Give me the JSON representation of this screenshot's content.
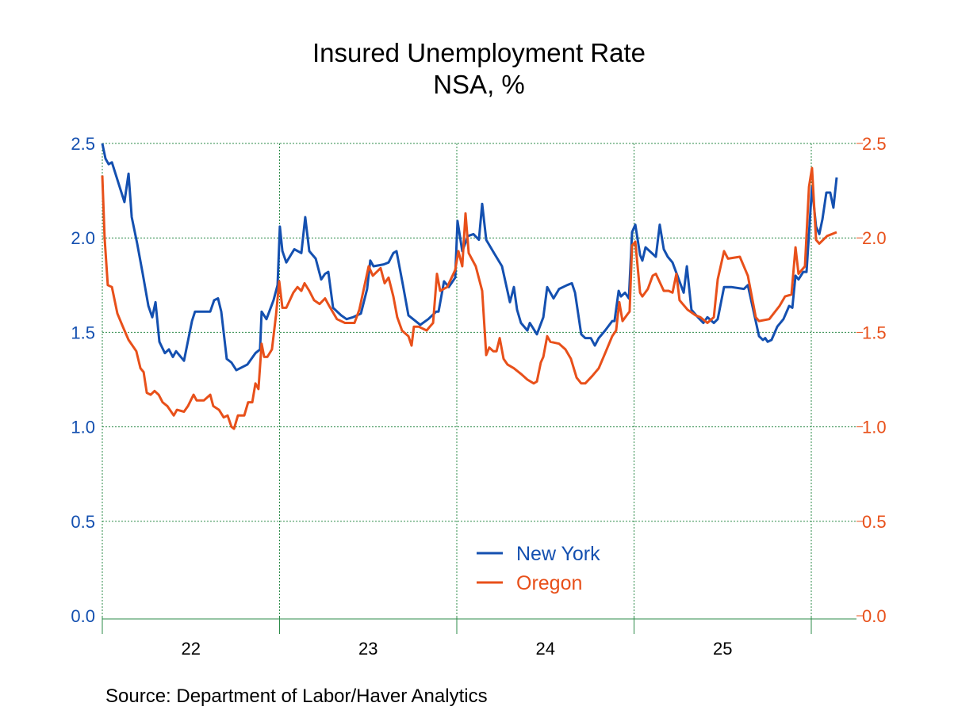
{
  "chart_data": {
    "type": "line",
    "title": "Insured Unemployment Rate",
    "subtitle": "NSA, %",
    "source": "Source:  Department of Labor/Haver Analytics",
    "x_origin_year": 2022,
    "x_note": "x values are years elapsed since start of 2022 (weekly data)",
    "xlim": [
      0,
      4.25
    ],
    "x_ticks": [
      {
        "label": "22",
        "center": 0.5
      },
      {
        "label": "23",
        "center": 1.5
      },
      {
        "label": "24",
        "center": 2.5
      },
      {
        "label": "25",
        "center": 3.5
      }
    ],
    "ylim_left": [
      0,
      2.5
    ],
    "ylim_right": [
      0,
      2.5
    ],
    "y_ticks_left": [
      "0.0",
      "0.5",
      "1.0",
      "1.5",
      "2.0",
      "2.5"
    ],
    "y_ticks_right": [
      "0.0",
      "0.5",
      "1.0",
      "1.5",
      "2.0",
      "2.5"
    ],
    "grid": true,
    "legend_position": "bottom-center",
    "series": [
      {
        "name": "New York",
        "color": "#1450b0",
        "axis": "left",
        "x": [
          0,
          0.018,
          0.036,
          0.054,
          0.125,
          0.148,
          0.166,
          0.197,
          0.228,
          0.26,
          0.282,
          0.3,
          0.322,
          0.353,
          0.376,
          0.398,
          0.416,
          0.461,
          0.506,
          0.523,
          0.609,
          0.631,
          0.653,
          0.671,
          0.702,
          0.729,
          0.756,
          0.819,
          0.864,
          0.89,
          0.899,
          0.926,
          0.966,
          0.989,
          1.002,
          1.016,
          1.038,
          1.083,
          1.123,
          1.145,
          1.168,
          1.204,
          1.235,
          1.257,
          1.275,
          1.302,
          1.347,
          1.378,
          1.414,
          1.459,
          1.494,
          1.512,
          1.53,
          1.588,
          1.615,
          1.642,
          1.66,
          1.696,
          1.727,
          1.767,
          1.794,
          1.839,
          1.884,
          1.897,
          1.928,
          1.955,
          1.991,
          2.004,
          2.031,
          2.063,
          2.094,
          2.125,
          2.143,
          2.166,
          2.21,
          2.255,
          2.3,
          2.322,
          2.34,
          2.362,
          2.398,
          2.412,
          2.452,
          2.488,
          2.51,
          2.546,
          2.577,
          2.622,
          2.649,
          2.667,
          2.702,
          2.725,
          2.756,
          2.779,
          2.801,
          2.837,
          2.877,
          2.89,
          2.913,
          2.926,
          2.949,
          2.971,
          2.989,
          3.007,
          3.034,
          3.047,
          3.065,
          3.123,
          3.145,
          3.168,
          3.19,
          3.217,
          3.28,
          3.298,
          3.324,
          3.36,
          3.391,
          3.414,
          3.45,
          3.472,
          3.508,
          3.548,
          3.62,
          3.642,
          3.705,
          3.727,
          3.74,
          3.754,
          3.776,
          3.808,
          3.843,
          3.875,
          3.893,
          3.911,
          3.928,
          3.955,
          3.973,
          4.004,
          4.027,
          4.045,
          4.063,
          4.085,
          4.107,
          4.125,
          4.143
        ],
        "values": [
          2.5,
          2.42,
          2.39,
          2.4,
          2.19,
          2.34,
          2.11,
          1.97,
          1.81,
          1.64,
          1.58,
          1.66,
          1.45,
          1.39,
          1.41,
          1.37,
          1.4,
          1.35,
          1.56,
          1.61,
          1.61,
          1.67,
          1.68,
          1.61,
          1.36,
          1.34,
          1.3,
          1.33,
          1.39,
          1.41,
          1.61,
          1.57,
          1.67,
          1.75,
          2.06,
          1.93,
          1.87,
          1.94,
          1.92,
          2.11,
          1.93,
          1.89,
          1.78,
          1.81,
          1.82,
          1.63,
          1.59,
          1.57,
          1.58,
          1.6,
          1.73,
          1.88,
          1.85,
          1.86,
          1.87,
          1.92,
          1.93,
          1.75,
          1.59,
          1.56,
          1.54,
          1.57,
          1.61,
          1.61,
          1.77,
          1.74,
          1.79,
          2.09,
          1.93,
          2.01,
          2.02,
          1.99,
          2.18,
          1.99,
          1.92,
          1.85,
          1.66,
          1.74,
          1.62,
          1.55,
          1.51,
          1.55,
          1.49,
          1.58,
          1.74,
          1.68,
          1.73,
          1.75,
          1.76,
          1.71,
          1.49,
          1.47,
          1.47,
          1.43,
          1.47,
          1.51,
          1.56,
          1.56,
          1.72,
          1.69,
          1.71,
          1.68,
          2.03,
          2.07,
          1.91,
          1.88,
          1.95,
          1.9,
          2.07,
          1.94,
          1.9,
          1.87,
          1.71,
          1.85,
          1.62,
          1.58,
          1.55,
          1.58,
          1.55,
          1.57,
          1.74,
          1.74,
          1.73,
          1.75,
          1.48,
          1.46,
          1.47,
          1.45,
          1.46,
          1.53,
          1.57,
          1.64,
          1.63,
          1.8,
          1.78,
          1.82,
          1.82,
          2.27,
          2.06,
          2.02,
          2.1,
          2.24,
          2.24,
          2.16,
          2.32
        ]
      },
      {
        "name": "Oregon",
        "color": "#e8501a",
        "axis": "right",
        "x": [
          0,
          0.013,
          0.031,
          0.054,
          0.085,
          0.116,
          0.148,
          0.192,
          0.215,
          0.233,
          0.251,
          0.273,
          0.295,
          0.318,
          0.34,
          0.367,
          0.403,
          0.421,
          0.461,
          0.483,
          0.515,
          0.532,
          0.573,
          0.609,
          0.626,
          0.658,
          0.685,
          0.707,
          0.729,
          0.743,
          0.765,
          0.801,
          0.823,
          0.846,
          0.864,
          0.881,
          0.899,
          0.913,
          0.931,
          0.957,
          0.98,
          0.998,
          1.016,
          1.038,
          1.078,
          1.101,
          1.123,
          1.141,
          1.168,
          1.195,
          1.226,
          1.257,
          1.28,
          1.324,
          1.369,
          1.423,
          1.45,
          1.503,
          1.526,
          1.57,
          1.593,
          1.615,
          1.642,
          1.664,
          1.691,
          1.727,
          1.745,
          1.758,
          1.785,
          1.83,
          1.848,
          1.866,
          1.888,
          1.906,
          1.946,
          1.991,
          2.009,
          2.031,
          2.049,
          2.067,
          2.107,
          2.143,
          2.166,
          2.183,
          2.206,
          2.224,
          2.242,
          2.264,
          2.286,
          2.322,
          2.362,
          2.398,
          2.434,
          2.452,
          2.474,
          2.488,
          2.51,
          2.528,
          2.577,
          2.613,
          2.644,
          2.676,
          2.702,
          2.725,
          2.765,
          2.801,
          2.837,
          2.877,
          2.899,
          2.917,
          2.935,
          2.966,
          2.975,
          2.989,
          3.007,
          3.034,
          3.047,
          3.078,
          3.105,
          3.123,
          3.168,
          3.195,
          3.217,
          3.239,
          3.257,
          3.302,
          3.347,
          3.374,
          3.414,
          3.45,
          3.472,
          3.508,
          3.53,
          3.597,
          3.642,
          3.687,
          3.705,
          3.763,
          3.821,
          3.852,
          3.888,
          3.911,
          3.928,
          3.964,
          3.987,
          4.004,
          4.027,
          4.045,
          4.089,
          4.143
        ],
        "values": [
          2.33,
          2.0,
          1.75,
          1.74,
          1.6,
          1.53,
          1.46,
          1.4,
          1.31,
          1.29,
          1.18,
          1.17,
          1.19,
          1.17,
          1.13,
          1.11,
          1.06,
          1.09,
          1.08,
          1.11,
          1.17,
          1.14,
          1.14,
          1.17,
          1.11,
          1.09,
          1.05,
          1.06,
          1.0,
          0.99,
          1.06,
          1.06,
          1.13,
          1.13,
          1.23,
          1.2,
          1.44,
          1.37,
          1.37,
          1.41,
          1.59,
          1.77,
          1.63,
          1.63,
          1.71,
          1.74,
          1.72,
          1.76,
          1.72,
          1.67,
          1.65,
          1.68,
          1.64,
          1.57,
          1.55,
          1.55,
          1.62,
          1.85,
          1.8,
          1.84,
          1.76,
          1.79,
          1.69,
          1.58,
          1.51,
          1.48,
          1.43,
          1.53,
          1.53,
          1.51,
          1.53,
          1.55,
          1.81,
          1.72,
          1.74,
          1.83,
          1.93,
          1.85,
          2.13,
          1.92,
          1.85,
          1.72,
          1.38,
          1.42,
          1.4,
          1.4,
          1.47,
          1.36,
          1.33,
          1.31,
          1.28,
          1.25,
          1.23,
          1.24,
          1.34,
          1.37,
          1.48,
          1.45,
          1.44,
          1.41,
          1.36,
          1.26,
          1.23,
          1.23,
          1.27,
          1.31,
          1.39,
          1.48,
          1.51,
          1.66,
          1.56,
          1.6,
          1.61,
          1.96,
          1.98,
          1.71,
          1.69,
          1.73,
          1.8,
          1.81,
          1.72,
          1.72,
          1.71,
          1.81,
          1.67,
          1.62,
          1.59,
          1.58,
          1.55,
          1.58,
          1.78,
          1.93,
          1.89,
          1.9,
          1.8,
          1.58,
          1.56,
          1.57,
          1.64,
          1.69,
          1.7,
          1.95,
          1.81,
          1.85,
          2.27,
          2.37,
          1.99,
          1.97,
          2.01,
          2.03
        ]
      }
    ]
  }
}
